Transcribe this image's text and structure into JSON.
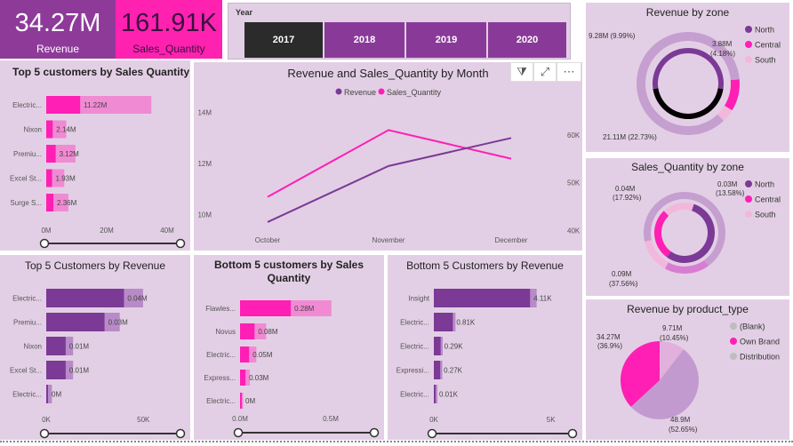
{
  "colors": {
    "panel_bg": "#e3cfe5",
    "purple": "#7b3a96",
    "purple_light": "#b88ac8",
    "magenta": "#ff1fb4",
    "magenta_light": "#f08ad3",
    "pink_pale": "#f3b7dd",
    "revenue_kpi": "#8e3a99",
    "qty_kpi": "#ff22b0",
    "year_dark": "#2b2b2b",
    "year_purple": "#893a99"
  },
  "kpis": [
    {
      "value": "34.27M",
      "label": "Revenue"
    },
    {
      "value": "161.91K",
      "label": "Sales_Quantity"
    }
  ],
  "year_slicer": {
    "title": "Year",
    "years": [
      "2017",
      "2018",
      "2019",
      "2020"
    ],
    "selected": "2017"
  },
  "panels": {
    "top5_qty": {
      "title": "Top 5 customers by Sales Quantity",
      "categories": [
        "Electric...",
        "Nixon",
        "Premiu...",
        "Excel St...",
        "Surge S..."
      ],
      "labels": [
        "11.22M",
        "2.14M",
        "3.12M",
        "1.93M",
        "2.36M"
      ],
      "ticks": [
        "0M",
        "20M",
        "40M"
      ]
    },
    "combo": {
      "title": "Revenue and Sales_Quantity by Month",
      "legend": [
        "Revenue",
        "Sales_Quantity"
      ],
      "x_labels": [
        "October",
        "November",
        "December"
      ],
      "y_left_ticks": [
        "14M",
        "12M",
        "10M"
      ],
      "y_right_ticks": [
        "60K",
        "50K",
        "40K"
      ]
    },
    "rev_zone": {
      "title": "Revenue by zone",
      "legend": [
        "North",
        "Central",
        "South"
      ],
      "labels": [
        "9.28M (9.99%)",
        "3.88M",
        "(4.18%)",
        "21.11M (22.73%)"
      ]
    },
    "qty_zone": {
      "title": "Sales_Quantity by zone",
      "legend": [
        "North",
        "Central",
        "South"
      ],
      "labels": [
        "0.04M",
        "(17.92%)",
        "0.03M",
        "(13.58%)",
        "0.09M",
        "(37.56%)"
      ]
    },
    "top5_rev": {
      "title": "Top 5 Customers by Revenue",
      "categories": [
        "Electric...",
        "Premiu...",
        "Nixon",
        "Excel St...",
        "Electric..."
      ],
      "labels": [
        "0.04M",
        "0.03M",
        "0.01M",
        "0.01M",
        "0M"
      ],
      "ticks": [
        "0K",
        "50K"
      ]
    },
    "bottom5_qty": {
      "title": "Bottom 5 customers by Sales Quantity",
      "categories": [
        "Flawles...",
        "Novus",
        "Electric...",
        "Express...",
        "Electric..."
      ],
      "labels": [
        "0.28M",
        "0.08M",
        "0.05M",
        "0.03M",
        "0M"
      ],
      "ticks": [
        "0.0M",
        "0.5M"
      ]
    },
    "bottom5_rev": {
      "title": "Bottom 5 Customers by Revenue",
      "categories": [
        "Insight",
        "Electric...",
        "Electric...",
        "Expressi...",
        "Electric..."
      ],
      "labels": [
        "4.11K",
        "0.81K",
        "0.29K",
        "0.27K",
        "0.01K"
      ],
      "ticks": [
        "0K",
        "5K"
      ]
    },
    "product_type": {
      "title": "Revenue by product_type",
      "legend": [
        "(Blank)",
        "Own Brand",
        "Distribution"
      ],
      "labels": [
        "34.27M",
        "(36.9%)",
        "9.71M",
        "(10.45%)",
        "48.9M",
        "(52.65%)"
      ]
    }
  },
  "chart_data": [
    {
      "type": "bar",
      "title": "Top 5 customers by Sales Quantity",
      "categories": [
        "Electric...",
        "Nixon",
        "Premiu...",
        "Excel St...",
        "Surge S..."
      ],
      "values": [
        11.22,
        2.14,
        3.12,
        1.93,
        2.36
      ],
      "unit": "M",
      "xlim": [
        0,
        45
      ]
    },
    {
      "type": "line",
      "title": "Revenue and Sales_Quantity by Month",
      "x": [
        "October",
        "November",
        "December"
      ],
      "series": [
        {
          "name": "Revenue",
          "axis": "left",
          "values": [
            9.7,
            11.9,
            13.0
          ]
        },
        {
          "name": "Sales_Quantity",
          "axis": "right",
          "values": [
            47,
            61,
            55
          ]
        }
      ],
      "ylim_left": [
        9,
        15
      ],
      "ylim_right": [
        38,
        70
      ]
    },
    {
      "type": "pie",
      "title": "Revenue by zone",
      "categories": [
        "North",
        "Central",
        "South"
      ],
      "values": [
        21.11,
        9.28,
        3.88
      ],
      "percent": [
        22.73,
        9.99,
        4.18
      ]
    },
    {
      "type": "pie",
      "title": "Sales_Quantity by zone",
      "categories": [
        "North",
        "Central",
        "South"
      ],
      "values": [
        0.09,
        0.04,
        0.03
      ],
      "percent": [
        37.56,
        17.92,
        13.58
      ]
    },
    {
      "type": "bar",
      "title": "Top 5 Customers by Revenue",
      "categories": [
        "Electric...",
        "Premiu...",
        "Nixon",
        "Excel St...",
        "Electric..."
      ],
      "values": [
        0.04,
        0.03,
        0.01,
        0.01,
        0.0
      ],
      "unit": "M",
      "xlim": [
        0,
        0.07
      ]
    },
    {
      "type": "bar",
      "title": "Bottom 5 customers by Sales Quantity",
      "categories": [
        "Flawles...",
        "Novus",
        "Electric...",
        "Express...",
        "Electric..."
      ],
      "values": [
        0.28,
        0.08,
        0.05,
        0.03,
        0.0
      ],
      "unit": "M",
      "xlim": [
        0,
        0.75
      ]
    },
    {
      "type": "bar",
      "title": "Bottom 5 Customers by Revenue",
      "categories": [
        "Insight",
        "Electric...",
        "Electric...",
        "Expressi...",
        "Electric..."
      ],
      "values": [
        4.11,
        0.81,
        0.29,
        0.27,
        0.01
      ],
      "unit": "K",
      "xlim": [
        0,
        6
      ]
    },
    {
      "type": "pie",
      "title": "Revenue by product_type",
      "categories": [
        "(Blank)",
        "Own Brand",
        "Distribution"
      ],
      "values": [
        9.71,
        34.27,
        48.9
      ],
      "percent": [
        10.45,
        36.9,
        52.65
      ]
    }
  ]
}
